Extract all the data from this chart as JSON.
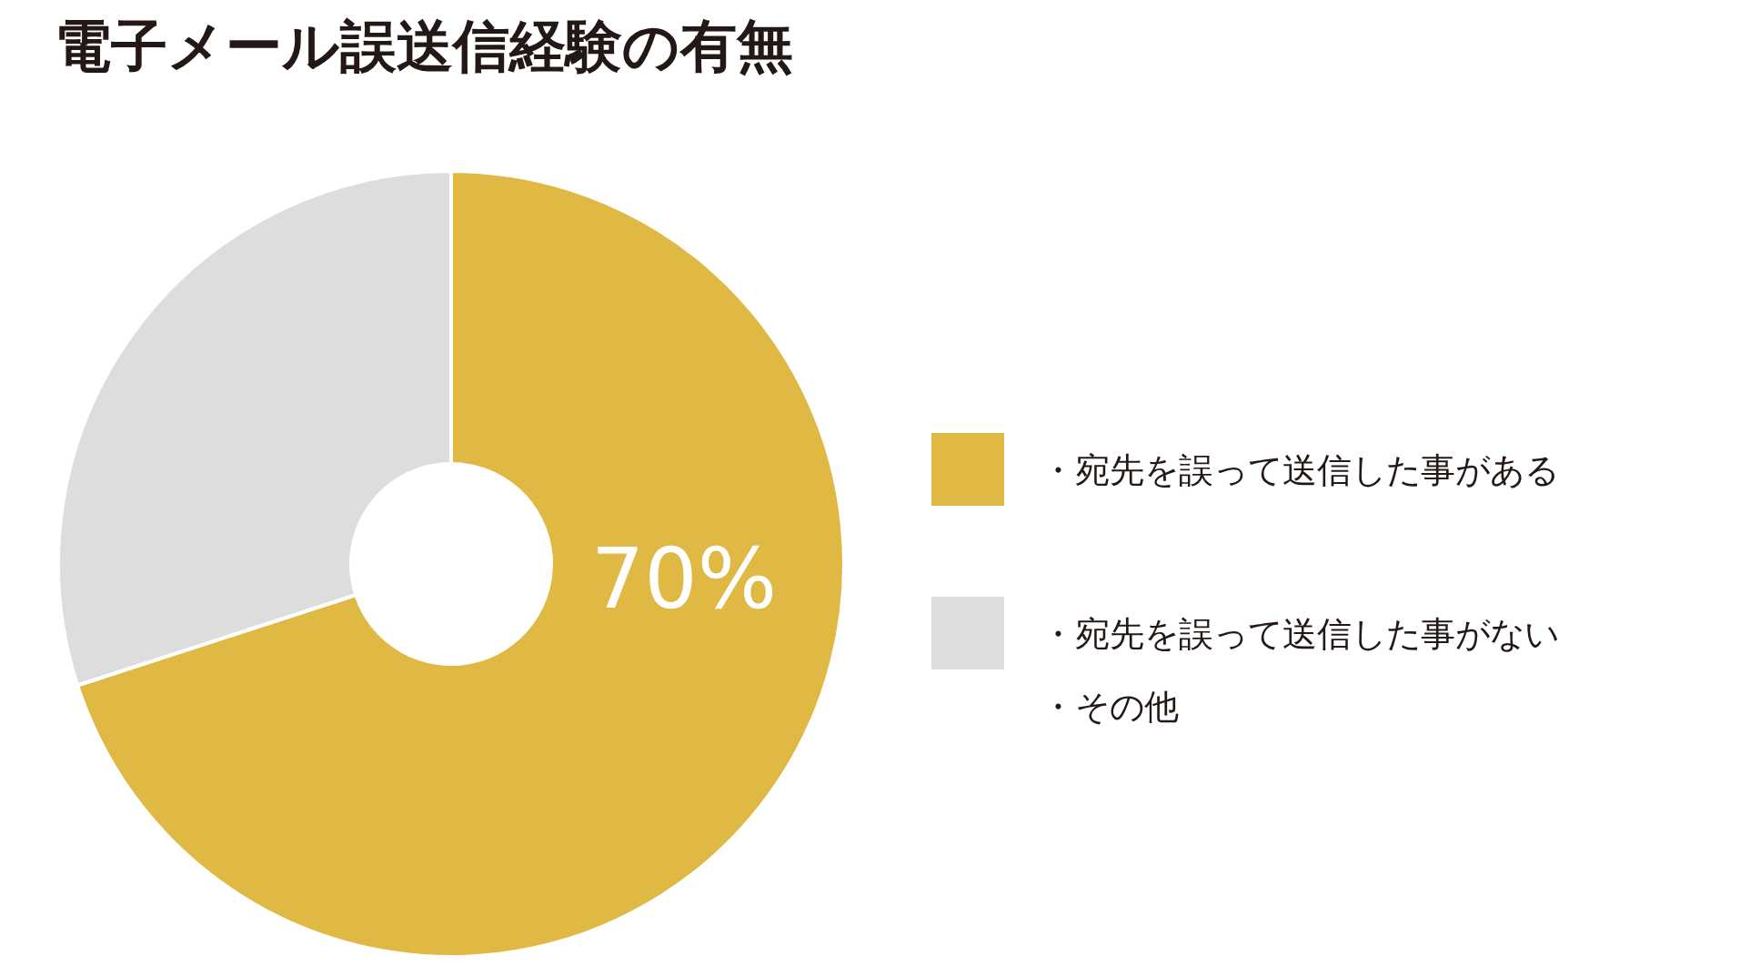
{
  "chart_data": {
    "type": "donut",
    "title": "電子メール誤送信経験の有無",
    "categories": [
      "・宛先を誤って送信した事がある",
      "・宛先を誤って送信した事がない・その他"
    ],
    "values": [
      70,
      30
    ],
    "colors": [
      "#e0b944",
      "#dddddd"
    ],
    "value_labels": [
      "70%",
      null
    ],
    "legend": "right"
  }
}
